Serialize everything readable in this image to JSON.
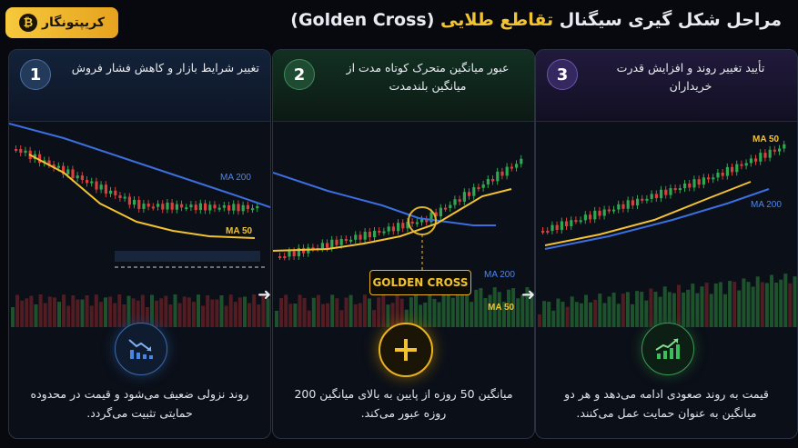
{
  "header": {
    "title_prefix": "مراحل شکل گیری سیگنال",
    "title_highlight": "تقاطع طلایی",
    "title_suffix": "(Golden Cross)",
    "logo_text": "کریپتونگار"
  },
  "panels": [
    {
      "number": "1",
      "heading": "تغییر شرایط بازار و کاهش فشار فروش",
      "ma_fast_label": "MA 50",
      "ma_slow_label": "MA 200",
      "icon": "downtrend-chart-icon",
      "description": "روند نزولی ضعیف می‌شود و قیمت در محدوده حمایتی تثبیت می‌گردد."
    },
    {
      "number": "2",
      "heading": "عبور میانگین متحرک کوتاه مدت از میانگین بلندمدت",
      "ma_fast_label": "MA 50",
      "ma_slow_label": "MA 200",
      "badge": "GOLDEN CROSS",
      "icon": "plus-cross-icon",
      "description": "میانگین 50 روزه از پایین به بالای میانگین 200 روزه عبور می‌کند."
    },
    {
      "number": "3",
      "heading": "تأیید تغییر روند و افزایش قدرت خریداران",
      "ma_fast_label": "MA 50",
      "ma_slow_label": "MA 200",
      "icon": "uptrend-chart-icon",
      "description": "قیمت به روند صعودی ادامه می‌دهد و هر دو میانگین به عنوان حمایت عمل می‌کنند."
    }
  ],
  "colors": {
    "gold": "#f2c230",
    "blue": "#3b6fe0",
    "up": "#2fa84f",
    "down": "#d8403e"
  }
}
